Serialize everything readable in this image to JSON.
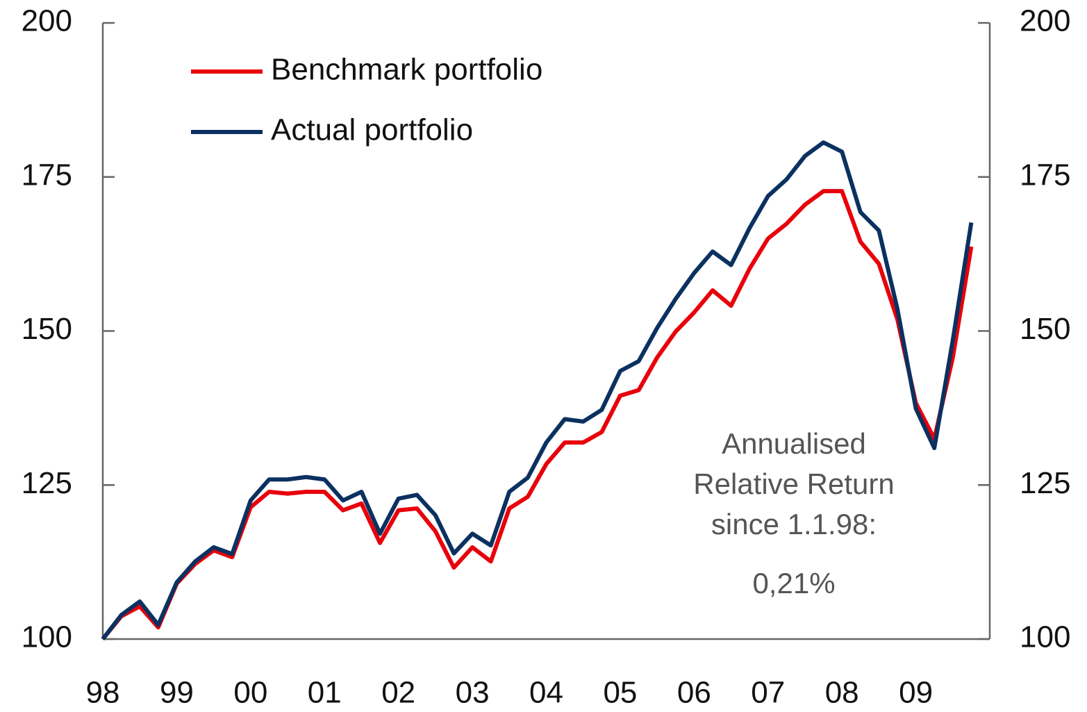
{
  "chart_data": {
    "type": "line",
    "x": [
      1998,
      1998.25,
      1998.5,
      1998.75,
      1999,
      1999.25,
      1999.5,
      1999.75,
      2000,
      2000.25,
      2000.5,
      2000.75,
      2001,
      2001.25,
      2001.5,
      2001.75,
      2002,
      2002.25,
      2002.5,
      2002.75,
      2003,
      2003.25,
      2003.5,
      2003.75,
      2004,
      2004.25,
      2004.5,
      2004.75,
      2005,
      2005.25,
      2005.5,
      2005.75,
      2006,
      2006.25,
      2006.5,
      2006.75,
      2007,
      2007.25,
      2007.5,
      2007.75,
      2008,
      2008.25,
      2008.5,
      2008.75,
      2009,
      2009.25,
      2009.5,
      2009.75
    ],
    "series": [
      {
        "name": "Benchmark portfolio",
        "color": "#e8000b",
        "values": [
          100,
          103.7,
          105.3,
          101.9,
          109,
          112.2,
          114.4,
          113.3,
          121.4,
          123.9,
          123.6,
          123.9,
          123.9,
          120.9,
          122,
          115.6,
          120.9,
          121.2,
          117.5,
          111.6,
          114.9,
          112.6,
          121.2,
          123.1,
          128.4,
          131.9,
          131.9,
          133.6,
          139.5,
          140.4,
          145.7,
          149.9,
          153,
          156.6,
          154.1,
          160.1,
          165,
          167.4,
          170.5,
          172.7,
          172.7,
          164.5,
          160.9,
          151.9,
          138.3,
          132.5,
          145.7,
          163.7
        ]
      },
      {
        "name": "Actual portfolio",
        "color": "#0b3160",
        "values": [
          100,
          103.9,
          106.1,
          102.3,
          109.2,
          112.6,
          114.9,
          113.8,
          122.5,
          125.9,
          125.9,
          126.3,
          125.9,
          122.5,
          123.9,
          117.1,
          122.8,
          123.4,
          120.1,
          113.9,
          117.1,
          115.2,
          123.9,
          126.2,
          131.9,
          135.7,
          135.3,
          137.2,
          143.5,
          145.1,
          150.5,
          155.2,
          159.4,
          162.9,
          160.7,
          166.7,
          171.9,
          174.6,
          178.4,
          180.6,
          179.1,
          169.3,
          166.3,
          153.6,
          137.4,
          131,
          148.5,
          167.6
        ]
      }
    ],
    "xlim": [
      1998,
      2010
    ],
    "xticks": [
      {
        "value": 1998,
        "label": "98"
      },
      {
        "value": 1999,
        "label": "99"
      },
      {
        "value": 2000,
        "label": "00"
      },
      {
        "value": 2001,
        "label": "01"
      },
      {
        "value": 2002,
        "label": "02"
      },
      {
        "value": 2003,
        "label": "03"
      },
      {
        "value": 2004,
        "label": "04"
      },
      {
        "value": 2005,
        "label": "05"
      },
      {
        "value": 2006,
        "label": "06"
      },
      {
        "value": 2007,
        "label": "07"
      },
      {
        "value": 2008,
        "label": "08"
      },
      {
        "value": 2009,
        "label": "09"
      }
    ],
    "ylim": [
      100,
      200
    ],
    "yticks": [
      100,
      125,
      150,
      175,
      200
    ],
    "y2lim": [
      100,
      200
    ],
    "y2ticks": [
      100,
      125,
      150,
      175,
      200
    ],
    "legend": "top-left",
    "annotation": [
      "Annualised",
      "Relative Return",
      "since 1.1.98:",
      "0,21%"
    ]
  }
}
